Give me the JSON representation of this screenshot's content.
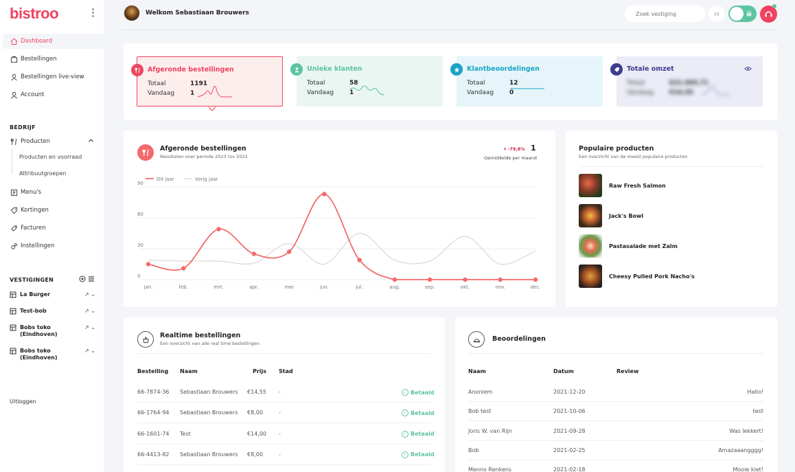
{
  "brand": {
    "name": "bistroo",
    "color": "#f0435f"
  },
  "sidebar": {
    "menu_icon": "kebab-menu-icon",
    "main_items": [
      {
        "label": "Dashboard",
        "icon": "home-icon",
        "active": true
      },
      {
        "label": "Bestellingen",
        "icon": "orders-icon"
      },
      {
        "label": "Bestellingen live-view",
        "icon": "live-view-icon"
      },
      {
        "label": "Account",
        "icon": "user-icon"
      }
    ],
    "section_bedrijf": "BEDRIJF",
    "producten": {
      "label": "Producten",
      "icon": "utensils-icon",
      "sub": [
        "Producten en voorraad",
        "Attribuutgroepen"
      ]
    },
    "bedrijf_items": [
      {
        "label": "Menu's",
        "icon": "menu-card-icon"
      },
      {
        "label": "Kortingen",
        "icon": "discount-icon"
      },
      {
        "label": "Facturen",
        "icon": "invoice-icon"
      },
      {
        "label": "Instellingen",
        "icon": "settings-icon"
      }
    ],
    "section_vestigingen": "VESTIGINGEN",
    "vestigingen": [
      {
        "name": "La Burger"
      },
      {
        "name": "Test-bob"
      },
      {
        "name": "Bobs toko (Eindhoven)"
      },
      {
        "name": "Bobs toko (Eindhoven)"
      }
    ],
    "logout": "Uitloggen"
  },
  "header": {
    "welcome": "Welkom Sebastiaan Brouwers",
    "search_placeholder": "Zoek vestiging",
    "language": "nl"
  },
  "stats": [
    {
      "title": "Afgeronde bestellingen",
      "color": "#f0435f",
      "bg": "#fdeeee",
      "icon": "utensils-icon",
      "totaal_label": "Totaal",
      "totaal": "1191",
      "vandaag_label": "Vandaag",
      "vandaag": "1"
    },
    {
      "title": "Unieke klanten",
      "color": "#5cc4a0",
      "bg": "#eaf6f1",
      "icon": "user-icon",
      "totaal_label": "Totaal",
      "totaal": "58",
      "vandaag_label": "Vandaag",
      "vandaag": "1"
    },
    {
      "title": "Klantbeoordelingen",
      "color": "#1ba3c7",
      "bg": "#e6f5f9",
      "icon": "star-icon",
      "totaal_label": "Totaal",
      "totaal": "12",
      "vandaag_label": "Vandaag",
      "vandaag": "0"
    },
    {
      "title": "Totale omzet",
      "color": "#3d3d8f",
      "bg": "#ececf7",
      "icon": "tag-icon",
      "eye_icon": "eye-icon",
      "totaal_label": "Totaal",
      "totaal": "€21.095,71",
      "vandaag_label": "Vandaag",
      "vandaag": "€14,55"
    }
  ],
  "main_chart": {
    "title": "Afgeronde bestellingen",
    "subtitle": "Resultaten over periode 2023 tov 2022",
    "change": "▾ -79,8%",
    "avg_value": "1",
    "avg_label": "Gemiddelde per maand"
  },
  "chart_data": {
    "type": "line",
    "categories": [
      "jan.",
      "feb.",
      "mrt.",
      "apr.",
      "mei",
      "jun.",
      "jul.",
      "aug.",
      "sep.",
      "okt.",
      "nov.",
      "dec."
    ],
    "series": [
      {
        "name": "Dit jaar",
        "color": "#f26a6a",
        "values": [
          15,
          11,
          49,
          25,
          27,
          83,
          19,
          0,
          0,
          0,
          0,
          0
        ]
      },
      {
        "name": "Vorig jaar",
        "color": "#d8d8d8",
        "values": [
          19,
          18,
          18,
          16,
          35,
          15,
          45,
          19,
          18,
          42,
          15,
          28
        ]
      }
    ],
    "yticks": [
      0,
      30,
      60,
      90
    ],
    "ylim": [
      0,
      90
    ],
    "grid": true,
    "legend": "top-left"
  },
  "popular": {
    "title": "Populaire producten",
    "subtitle": "Een overzicht van de meest populaire producten",
    "items": [
      {
        "name": "Raw Fresh Salmon"
      },
      {
        "name": "Jack's Bowl"
      },
      {
        "name": "Pastasalade met Zalm"
      },
      {
        "name": "Cheesy Pulled Pork Nacho's"
      }
    ]
  },
  "realtime": {
    "title": "Realtime bestellingen",
    "subtitle": "Een overzicht van alle real time bestellingen",
    "icon": "basket-icon",
    "headers": {
      "bestelling": "Bestelling",
      "naam": "Naam",
      "prijs": "Prijs",
      "stad": "Stad"
    },
    "rows": [
      {
        "id": "66-7874-36",
        "naam": "Sebastiaan Brouwers",
        "prijs": "€14,55",
        "stad": "-",
        "status": "Betaald"
      },
      {
        "id": "66-1764-94",
        "naam": "Sebastiaan Brouwers",
        "prijs": "€8,00",
        "stad": "-",
        "status": "Betaald"
      },
      {
        "id": "66-1601-74",
        "naam": "Test",
        "prijs": "€14,00",
        "stad": "-",
        "status": "Betaald"
      },
      {
        "id": "66-4413-82",
        "naam": "Sebastiaan Brouwers",
        "prijs": "€8,00",
        "stad": "-",
        "status": "Betaald"
      }
    ]
  },
  "reviews": {
    "title": "Beoordelingen",
    "icon": "reviews-icon",
    "headers": {
      "naam": "Naam",
      "datum": "Datum",
      "review": "Review"
    },
    "rows": [
      {
        "naam": "Anoniem",
        "datum": "2021-12-20",
        "review": "Hallo!"
      },
      {
        "naam": "Bob test",
        "datum": "2021-10-06",
        "review": "test"
      },
      {
        "naam": "Joris W. van Rijn",
        "datum": "2021-09-28",
        "review": "Was lekkert!"
      },
      {
        "naam": "Bob",
        "datum": "2021-02-25",
        "review": "Amazaaangggg!"
      },
      {
        "naam": "Menno Renkens",
        "datum": "2021-02-18",
        "review": "Mooie kiet!"
      }
    ]
  }
}
